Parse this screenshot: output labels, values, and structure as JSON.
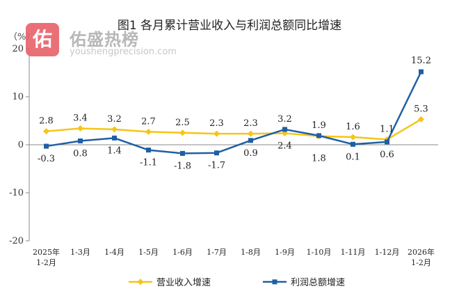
{
  "watermark": {
    "badge": "佑",
    "name": "佑盛热榜",
    "url": "youshengprecision.com"
  },
  "chart_data": {
    "type": "line",
    "title": "图1  各月累计营业收入与利润总额同比增速",
    "ylabel": "（%）",
    "ylim": [
      -20,
      20
    ],
    "yticks": [
      -20,
      -10,
      0,
      10,
      20
    ],
    "grid": false,
    "legend_position": "bottom",
    "categories": [
      {
        "line1": "2025年",
        "line2": "1-2月"
      },
      {
        "line1": "1-3月",
        "line2": ""
      },
      {
        "line1": "1-4月",
        "line2": ""
      },
      {
        "line1": "1-5月",
        "line2": ""
      },
      {
        "line1": "1-6月",
        "line2": ""
      },
      {
        "line1": "1-7月",
        "line2": ""
      },
      {
        "line1": "1-8月",
        "line2": ""
      },
      {
        "line1": "1-9月",
        "line2": ""
      },
      {
        "line1": "1-10月",
        "line2": ""
      },
      {
        "line1": "1-11月",
        "line2": ""
      },
      {
        "line1": "1-12月",
        "line2": ""
      },
      {
        "line1": "2026年",
        "line2": "1-2月"
      }
    ],
    "series": [
      {
        "name": "营业收入增速",
        "color": "#f5c518",
        "marker": "diamond",
        "values": [
          2.8,
          3.4,
          3.2,
          2.7,
          2.5,
          2.3,
          2.3,
          2.4,
          1.8,
          1.6,
          1.1,
          5.3
        ],
        "labels": [
          "2.8",
          "3.4",
          "3.2",
          "2.7",
          "2.5",
          "2.3",
          "2.3",
          "2.4",
          "1.8",
          "1.6",
          "1.1",
          "5.3"
        ],
        "label_pos": [
          "above",
          "above",
          "above",
          "above",
          "above",
          "above",
          "above",
          "below",
          "below",
          "above",
          "above",
          "above"
        ]
      },
      {
        "name": "利润总额增速",
        "color": "#1f5fa3",
        "marker": "square",
        "values": [
          -0.3,
          0.8,
          1.4,
          -1.1,
          -1.8,
          -1.7,
          0.9,
          3.2,
          1.9,
          0.1,
          0.6,
          15.2
        ],
        "labels": [
          "-0.3",
          "0.8",
          "1.4",
          "-1.1",
          "-1.8",
          "-1.7",
          "0.9",
          "3.2",
          "1.9",
          "0.1",
          "0.6",
          "15.2"
        ],
        "label_pos": [
          "below",
          "below",
          "below",
          "below",
          "below",
          "below",
          "below",
          "above",
          "above",
          "below",
          "below",
          "above"
        ]
      }
    ]
  }
}
